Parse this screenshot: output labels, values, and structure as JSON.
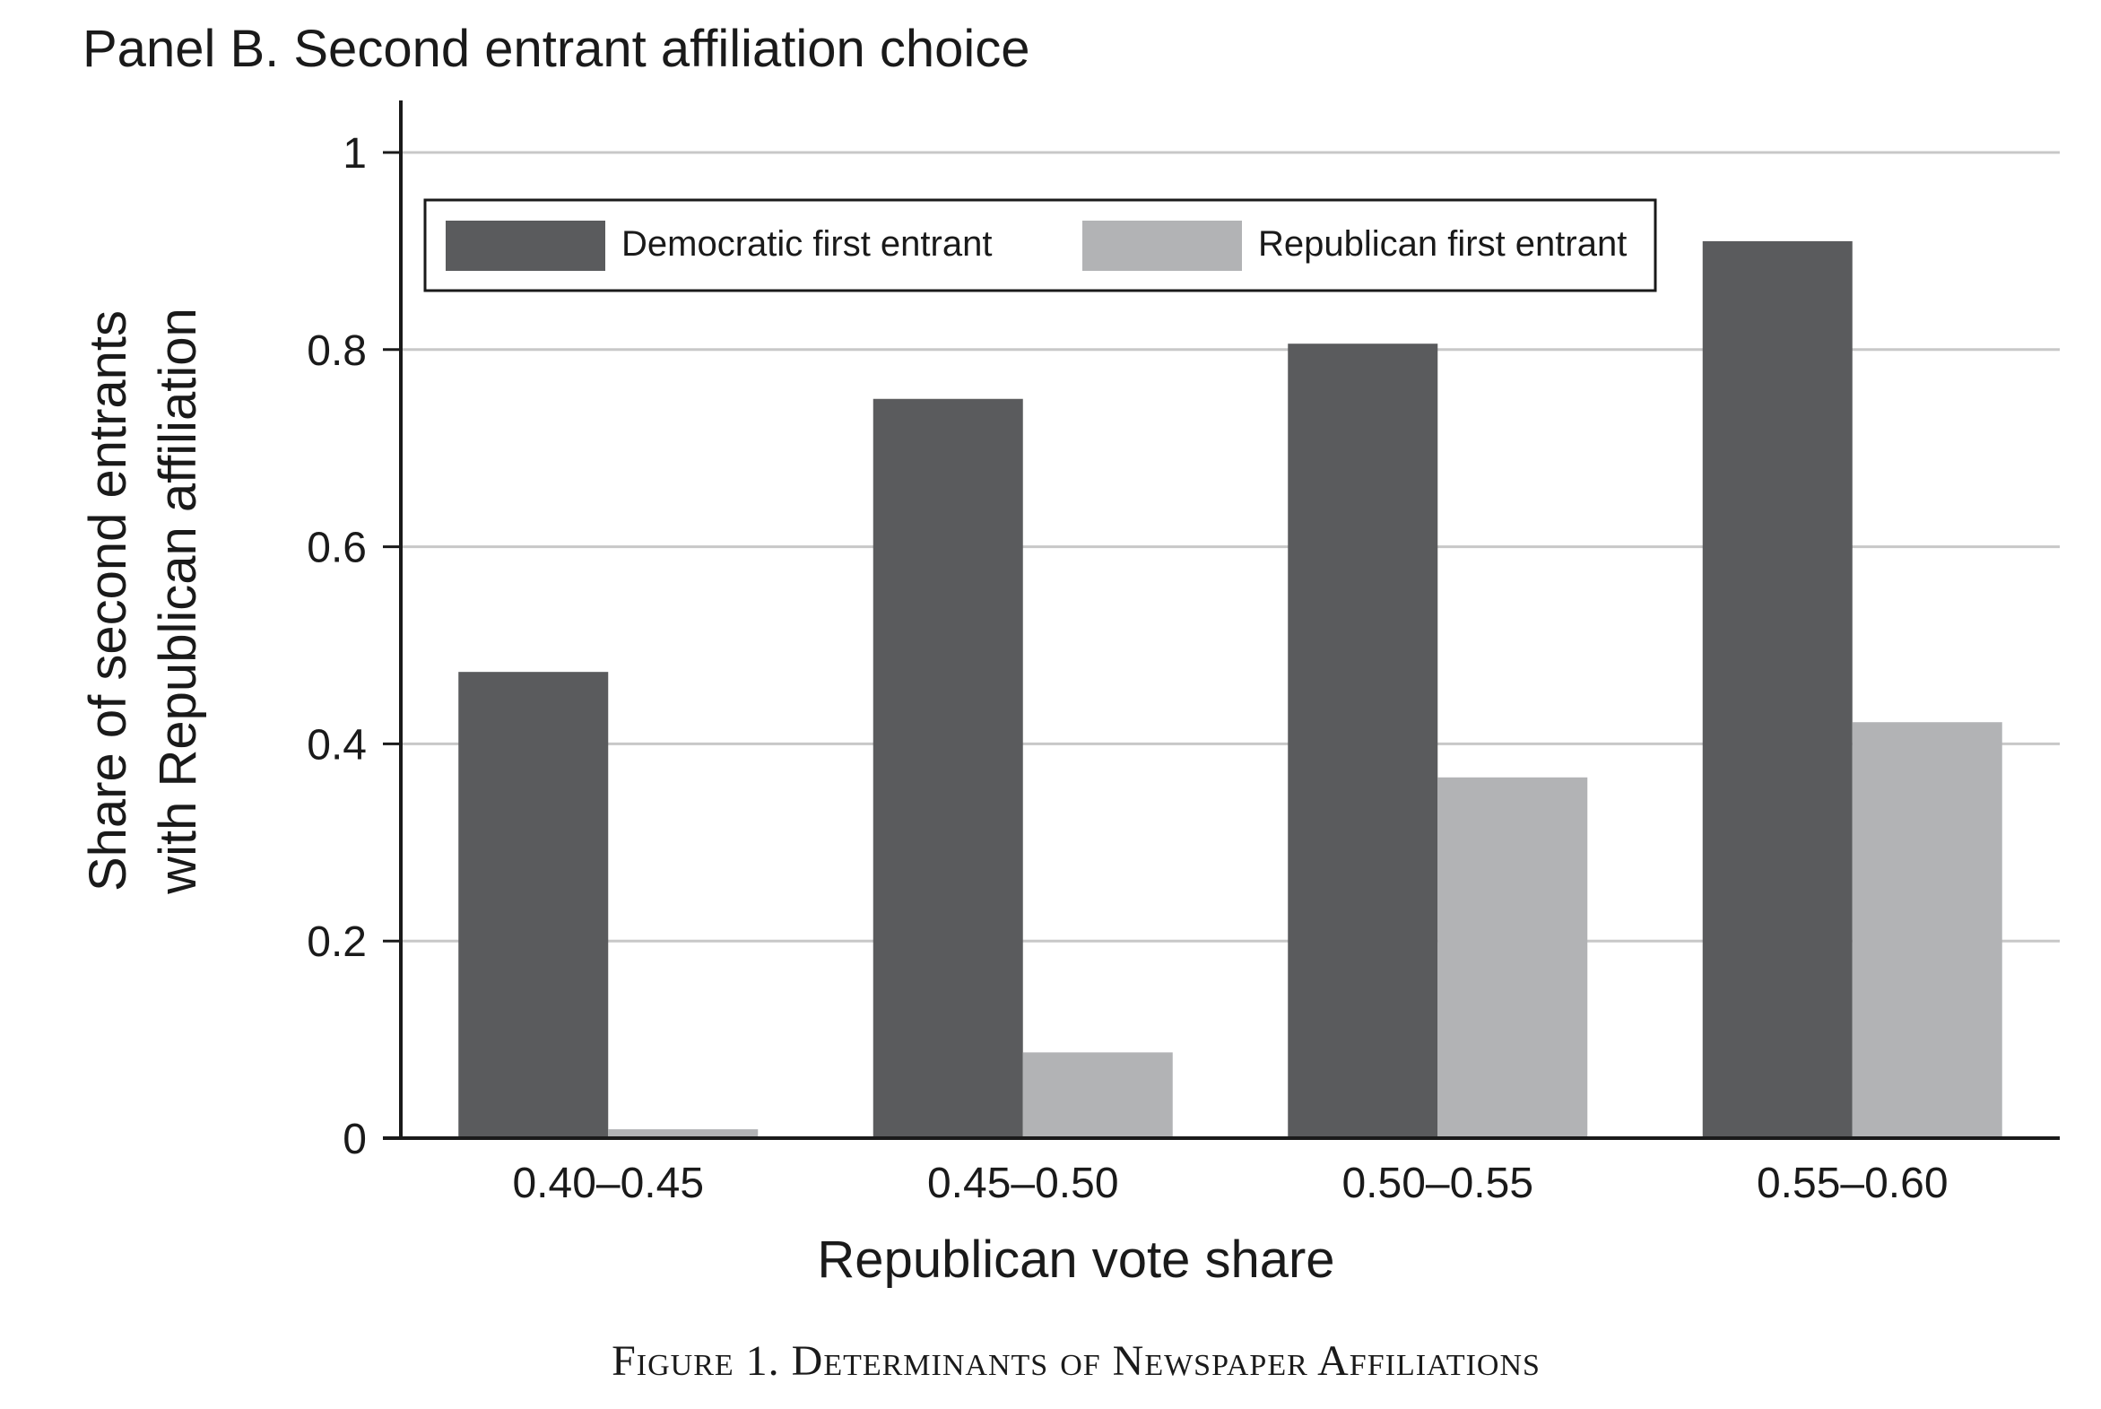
{
  "chart_data": {
    "type": "bar",
    "title": "Panel B. Second entrant affiliation choice",
    "xlabel": "Republican vote share",
    "ylabel_lines": [
      "Share of second entrants",
      "with Republican affiliation"
    ],
    "categories": [
      "0.40–0.45",
      "0.45–0.50",
      "0.50–0.55",
      "0.55–0.60"
    ],
    "series": [
      {
        "name": "Democratic first entrant",
        "values": [
          0.473,
          0.75,
          0.806,
          0.91
        ],
        "color": "#5a5b5d"
      },
      {
        "name": "Republican first entrant",
        "values": [
          0.009,
          0.087,
          0.366,
          0.422
        ],
        "color": "#b2b3b5"
      }
    ],
    "ylim": [
      0,
      1
    ],
    "yticks": [
      {
        "value": 0,
        "label": "0"
      },
      {
        "value": 0.2,
        "label": "0.2"
      },
      {
        "value": 0.4,
        "label": "0.4"
      },
      {
        "value": 0.6,
        "label": "0.6"
      },
      {
        "value": 0.8,
        "label": "0.8"
      },
      {
        "value": 1,
        "label": "1"
      }
    ],
    "grid": true,
    "legend": "top-left"
  },
  "caption": "Figure 1. Determinants of Newspaper Affiliations"
}
